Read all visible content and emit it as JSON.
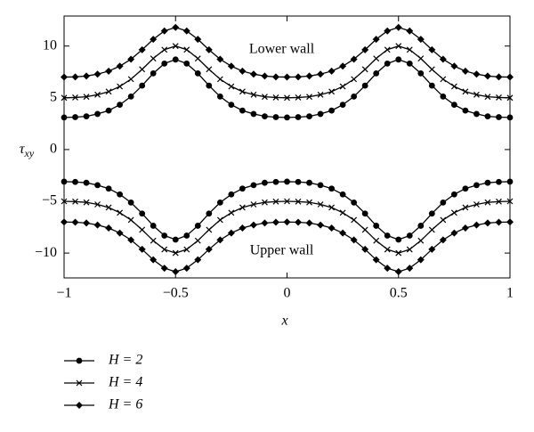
{
  "chart_data": {
    "type": "line",
    "x_label": "x",
    "y_label": {
      "symbol": "τ",
      "subscript": "xy"
    },
    "annotations": [
      "Lower wall",
      "Upper wall"
    ],
    "x": [
      -1,
      -0.95,
      -0.9,
      -0.85,
      -0.8,
      -0.75,
      -0.7,
      -0.65,
      -0.6,
      -0.55,
      -0.5,
      -0.45,
      -0.4,
      -0.35,
      -0.3,
      -0.25,
      -0.2,
      -0.15,
      -0.1,
      -0.05,
      0,
      0.05,
      0.1,
      0.15,
      0.2,
      0.25,
      0.3,
      0.35,
      0.4,
      0.45,
      0.5,
      0.55,
      0.6,
      0.65,
      0.7,
      0.75,
      0.8,
      0.85,
      0.9,
      0.95,
      1
    ],
    "series": [
      {
        "name": "H = 2",
        "marker": "circle",
        "color": "#000000",
        "lower_wall": [
          3.1,
          3.13,
          3.21,
          3.44,
          3.77,
          4.33,
          5.12,
          6.18,
          7.36,
          8.31,
          8.7,
          8.31,
          7.36,
          6.18,
          5.12,
          4.33,
          3.77,
          3.44,
          3.21,
          3.13,
          3.1,
          3.13,
          3.21,
          3.44,
          3.77,
          4.33,
          5.12,
          6.18,
          7.36,
          8.31,
          8.7,
          8.31,
          7.36,
          6.18,
          5.12,
          4.33,
          3.77,
          3.44,
          3.21,
          3.13,
          3.1
        ],
        "upper_wall": [
          -3.1,
          -3.13,
          -3.21,
          -3.44,
          -3.77,
          -4.33,
          -5.12,
          -6.18,
          -7.36,
          -8.31,
          -8.7,
          -8.31,
          -7.36,
          -6.18,
          -5.12,
          -4.33,
          -3.77,
          -3.44,
          -3.21,
          -3.13,
          -3.1,
          -3.13,
          -3.21,
          -3.44,
          -3.77,
          -4.33,
          -5.12,
          -6.18,
          -7.36,
          -8.31,
          -8.7,
          -8.31,
          -7.36,
          -6.18,
          -5.12,
          -4.33,
          -3.77,
          -3.44,
          -3.21,
          -3.13,
          -3.1
        ]
      },
      {
        "name": "H = 4",
        "marker": "cross",
        "color": "#000000",
        "lower_wall": [
          5,
          5.03,
          5.1,
          5.3,
          5.6,
          6.1,
          6.8,
          7.75,
          8.8,
          9.65,
          10,
          9.65,
          8.8,
          7.75,
          6.8,
          6.1,
          5.6,
          5.3,
          5.1,
          5.03,
          5,
          5.03,
          5.1,
          5.3,
          5.6,
          6.1,
          6.8,
          7.75,
          8.8,
          9.65,
          10,
          9.65,
          8.8,
          7.75,
          6.8,
          6.1,
          5.6,
          5.3,
          5.1,
          5.03,
          5
        ],
        "upper_wall": [
          -5,
          -5.03,
          -5.1,
          -5.3,
          -5.6,
          -6.1,
          -6.8,
          -7.75,
          -8.8,
          -9.65,
          -10,
          -9.65,
          -8.8,
          -7.75,
          -6.8,
          -6.1,
          -5.6,
          -5.3,
          -5.1,
          -5.03,
          -5,
          -5.03,
          -5.1,
          -5.3,
          -5.6,
          -6.1,
          -6.8,
          -7.75,
          -8.8,
          -9.65,
          -10,
          -9.65,
          -8.8,
          -7.75,
          -6.8,
          -6.1,
          -5.6,
          -5.3,
          -5.1,
          -5.03,
          -5
        ]
      },
      {
        "name": "H = 6",
        "marker": "diamond",
        "color": "#000000",
        "lower_wall": [
          7,
          7.02,
          7.1,
          7.29,
          7.58,
          8.06,
          8.73,
          9.64,
          10.65,
          11.46,
          11.8,
          11.46,
          10.65,
          9.64,
          8.73,
          8.06,
          7.58,
          7.29,
          7.1,
          7.02,
          7,
          7.02,
          7.1,
          7.29,
          7.58,
          8.06,
          8.73,
          9.64,
          10.65,
          11.46,
          11.8,
          11.46,
          10.65,
          9.64,
          8.73,
          8.06,
          7.58,
          7.29,
          7.1,
          7.02,
          7
        ],
        "upper_wall": [
          -7,
          -7.02,
          -7.1,
          -7.29,
          -7.58,
          -8.06,
          -8.73,
          -9.64,
          -10.65,
          -11.46,
          -11.8,
          -11.46,
          -10.65,
          -9.64,
          -8.73,
          -8.06,
          -7.58,
          -7.29,
          -7.1,
          -7.02,
          -7,
          -7.02,
          -7.1,
          -7.29,
          -7.58,
          -8.06,
          -8.73,
          -9.64,
          -10.65,
          -11.46,
          -11.8,
          -11.46,
          -10.65,
          -9.64,
          -8.73,
          -8.06,
          -7.58,
          -7.29,
          -7.1,
          -7.02,
          -7
        ]
      }
    ],
    "xlim": [
      -1,
      1
    ],
    "xticks": [
      {
        "value": -1,
        "label": "−1"
      },
      {
        "value": -0.5,
        "label": "−0.5"
      },
      0,
      0.5,
      1
    ],
    "ylim": [
      -12.4,
      12.9
    ],
    "yticks": [
      {
        "value": -10,
        "label": "−10"
      },
      {
        "value": -5,
        "label": "−5"
      },
      0,
      5,
      10
    ],
    "grid": false,
    "legend": "below"
  }
}
